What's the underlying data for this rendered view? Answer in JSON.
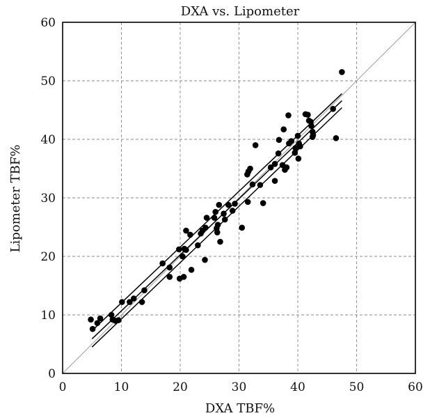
{
  "chart_data": {
    "type": "scatter",
    "title": "DXA vs. Lipometer",
    "xlabel": "DXA TBF%",
    "ylabel": "Lipometer TBF%",
    "xlim": [
      0,
      60
    ],
    "ylim": [
      0,
      60
    ],
    "xticks": [
      0,
      10,
      20,
      30,
      40,
      50,
      60
    ],
    "yticks": [
      0,
      10,
      20,
      30,
      40,
      50,
      60
    ],
    "grid": true,
    "legend": "none",
    "identity_line": true,
    "regression": {
      "x_range": [
        5,
        47.5
      ],
      "fit": [
        [
          5,
          5.9
        ],
        [
          47.5,
          46.6
        ]
      ],
      "upper_band": [
        [
          5,
          7.3
        ],
        [
          47.5,
          47.8
        ]
      ],
      "lower_band": [
        [
          5,
          4.5
        ],
        [
          47.5,
          45.4
        ]
      ]
    },
    "points": [
      [
        4.8,
        9.2
      ],
      [
        5.1,
        7.6
      ],
      [
        5.9,
        8.6
      ],
      [
        6.4,
        9.4
      ],
      [
        8.3,
        10.0
      ],
      [
        8.5,
        9.2
      ],
      [
        9.0,
        9.0
      ],
      [
        9.5,
        9.1
      ],
      [
        10.1,
        12.2
      ],
      [
        11.4,
        12.2
      ],
      [
        12.1,
        12.8
      ],
      [
        13.5,
        12.2
      ],
      [
        13.9,
        14.2
      ],
      [
        17.0,
        18.8
      ],
      [
        18.2,
        16.5
      ],
      [
        18.2,
        18.1
      ],
      [
        19.8,
        21.2
      ],
      [
        19.9,
        16.2
      ],
      [
        20.4,
        20.0
      ],
      [
        20.6,
        16.5
      ],
      [
        20.7,
        21.3
      ],
      [
        21.0,
        21.1
      ],
      [
        21.0,
        24.4
      ],
      [
        21.7,
        23.7
      ],
      [
        21.9,
        17.7
      ],
      [
        23.0,
        21.9
      ],
      [
        23.5,
        23.9
      ],
      [
        23.8,
        24.4
      ],
      [
        24.2,
        19.4
      ],
      [
        24.3,
        24.9
      ],
      [
        24.5,
        26.6
      ],
      [
        25.8,
        26.6
      ],
      [
        26.0,
        27.6
      ],
      [
        26.2,
        24.8
      ],
      [
        26.3,
        24.1
      ],
      [
        26.4,
        25.4
      ],
      [
        26.6,
        28.8
      ],
      [
        26.8,
        22.5
      ],
      [
        27.4,
        27.3
      ],
      [
        27.6,
        26.3
      ],
      [
        28.2,
        28.8
      ],
      [
        28.9,
        27.8
      ],
      [
        29.3,
        29.0
      ],
      [
        30.5,
        24.9
      ],
      [
        31.4,
        34.0
      ],
      [
        31.5,
        29.3
      ],
      [
        31.6,
        34.5
      ],
      [
        31.9,
        35.0
      ],
      [
        32.3,
        32.3
      ],
      [
        32.8,
        39.0
      ],
      [
        33.6,
        32.2
      ],
      [
        34.1,
        29.1
      ],
      [
        35.4,
        35.2
      ],
      [
        36.1,
        35.8
      ],
      [
        36.1,
        32.9
      ],
      [
        36.7,
        37.6
      ],
      [
        36.8,
        39.9
      ],
      [
        37.4,
        35.6
      ],
      [
        37.6,
        41.7
      ],
      [
        37.8,
        34.8
      ],
      [
        38.1,
        35.2
      ],
      [
        38.4,
        44.1
      ],
      [
        38.5,
        39.3
      ],
      [
        38.9,
        39.7
      ],
      [
        39.5,
        37.7
      ],
      [
        39.6,
        38.5
      ],
      [
        40.0,
        40.6
      ],
      [
        40.1,
        36.7
      ],
      [
        40.2,
        39.3
      ],
      [
        40.4,
        38.8
      ],
      [
        41.3,
        44.3
      ],
      [
        41.7,
        44.2
      ],
      [
        41.9,
        43.2
      ],
      [
        42.2,
        43.0
      ],
      [
        42.3,
        42.3
      ],
      [
        42.5,
        41.3
      ],
      [
        42.5,
        40.4
      ],
      [
        42.6,
        40.7
      ],
      [
        46.0,
        45.2
      ],
      [
        46.5,
        40.2
      ],
      [
        47.5,
        51.5
      ]
    ]
  }
}
